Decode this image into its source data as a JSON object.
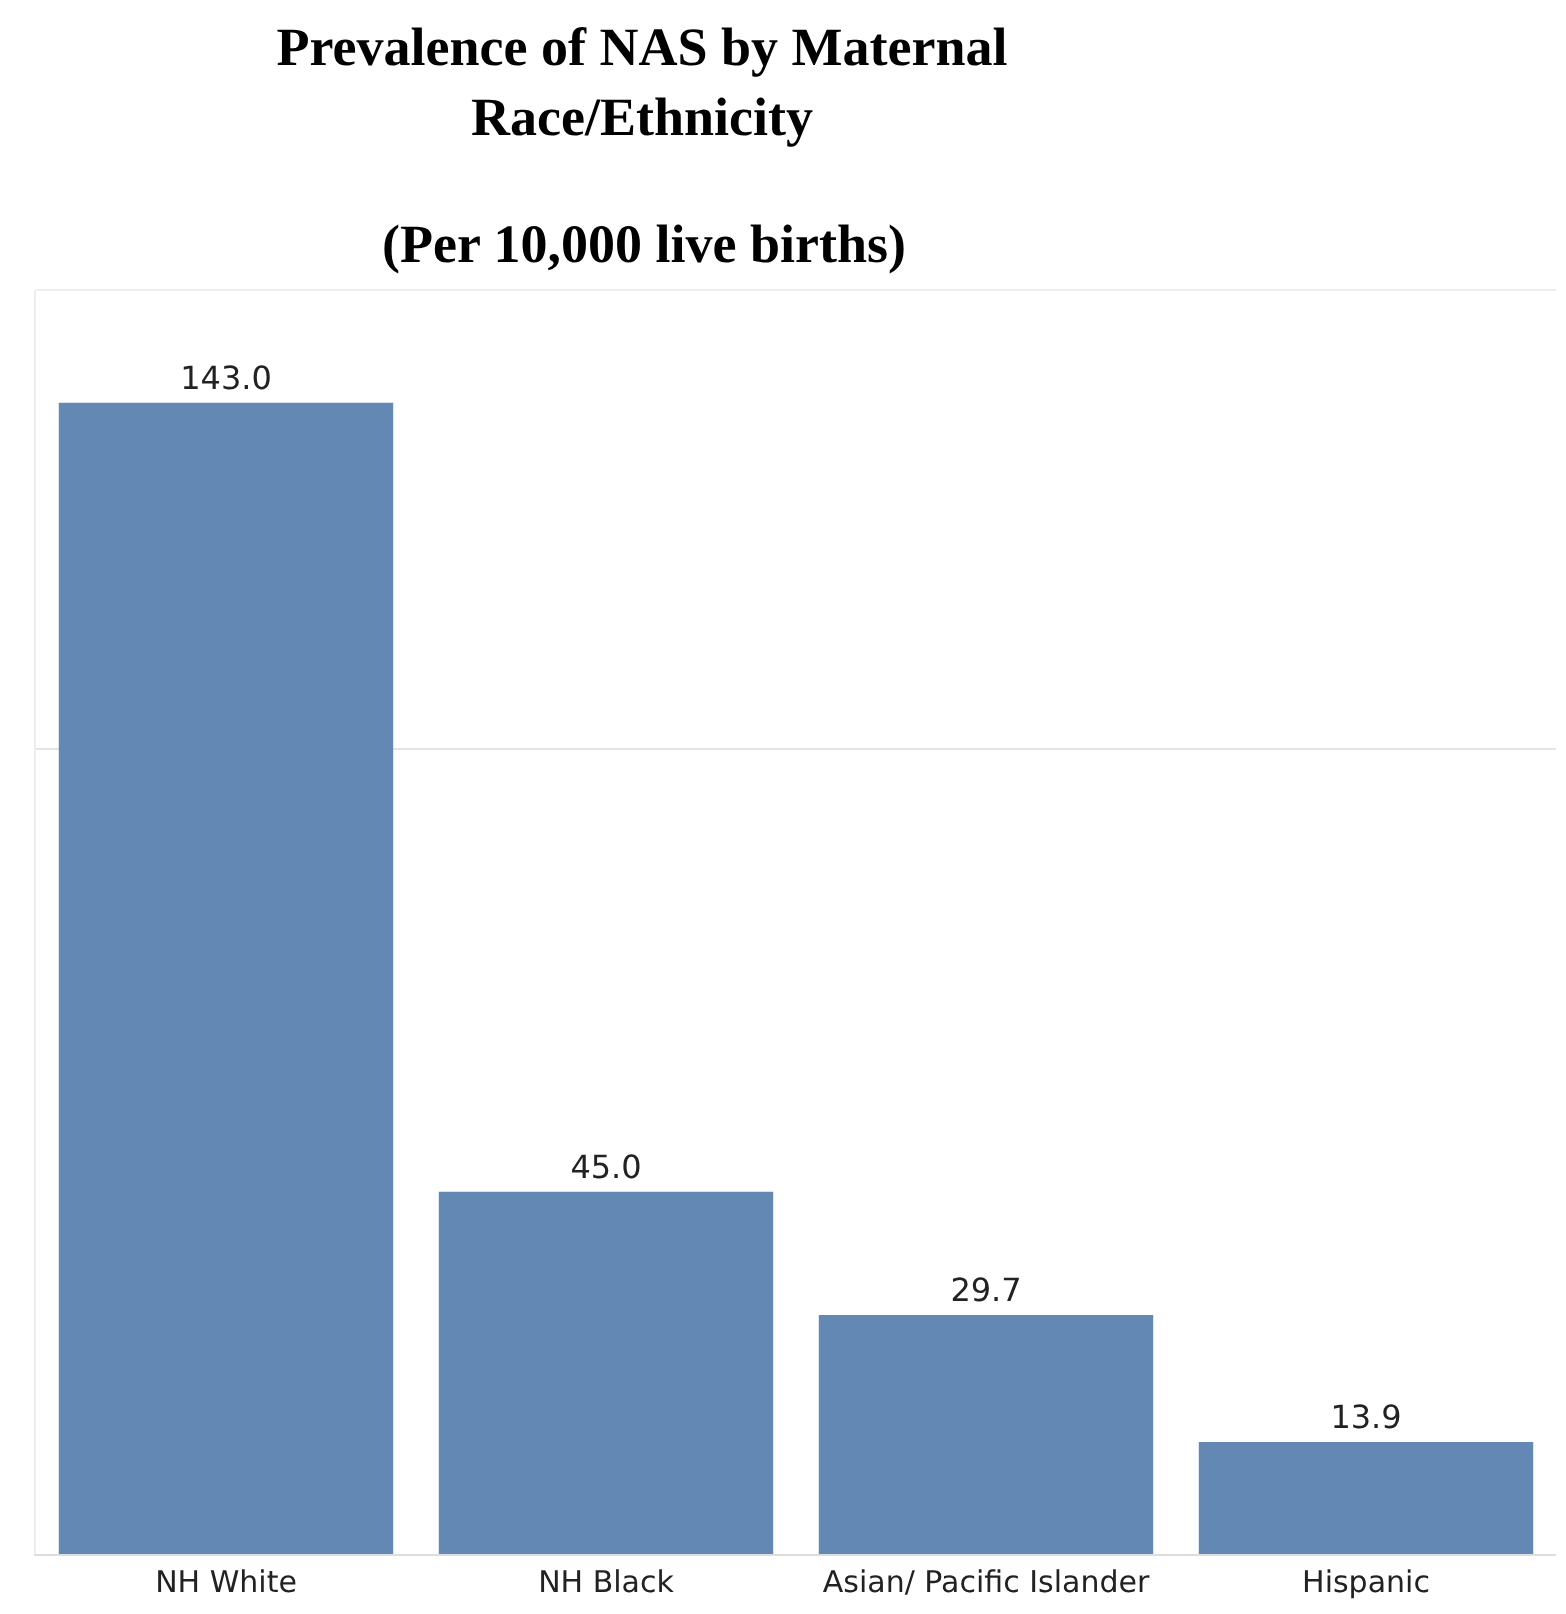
{
  "chart_data": {
    "type": "bar",
    "title": "Prevalence of NAS by Maternal\nRace/Ethnicity",
    "subtitle": "(Per 10,000 live births)",
    "categories": [
      "NH White",
      "NH Black",
      "Asian/ Pacific Islander",
      "Hispanic"
    ],
    "values": [
      143.0,
      45.0,
      29.7,
      13.9
    ],
    "value_labels": [
      "143.0",
      "45.0",
      "29.7",
      "13.9"
    ],
    "color": "#6388b4",
    "ylim": [
      0,
      157
    ],
    "ref_lines": [
      {
        "axis": "y",
        "value": 100,
        "color": "#e4e4e4"
      }
    ],
    "tick_labels": "x",
    "legend": false
  }
}
